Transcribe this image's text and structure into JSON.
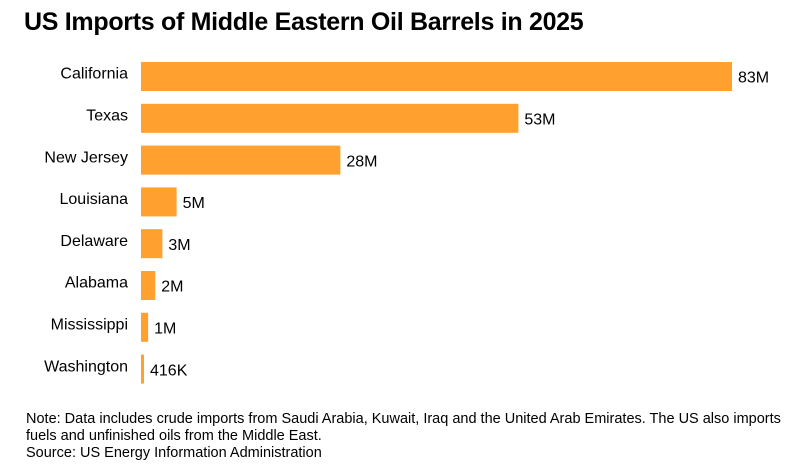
{
  "chart_data": {
    "type": "bar",
    "orientation": "horizontal",
    "title": "US Imports of Middle Eastern Oil Barrels in 2025",
    "categories": [
      "California",
      "Texas",
      "New Jersey",
      "Louisiana",
      "Delaware",
      "Alabama",
      "Mississippi",
      "Washington"
    ],
    "values": [
      83000000,
      53000000,
      28000000,
      5000000,
      3000000,
      2000000,
      1000000,
      416000
    ],
    "value_labels": [
      "83M",
      "53M",
      "28M",
      "5M",
      "3M",
      "2M",
      "1M",
      "416K"
    ],
    "xlim": [
      0,
      83000000
    ],
    "grid": false,
    "bar_color": "#ffa02f"
  },
  "note": "Note: Data includes crude imports from Saudi Arabia, Kuwait, Iraq and the United Arab Emirates. The US also imports fuels and unfinished oils from the Middle East.",
  "source": "Source: US Energy Information Administration"
}
